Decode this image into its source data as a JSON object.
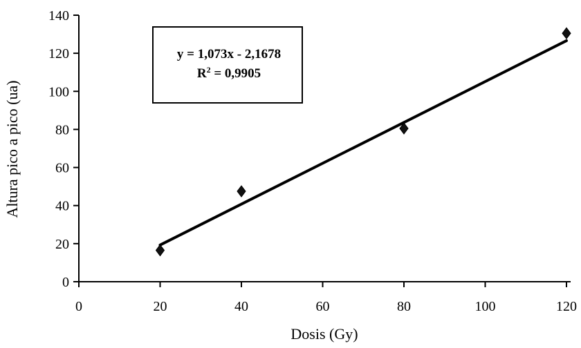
{
  "chart_data": {
    "type": "scatter",
    "title": "",
    "xlabel": "Dosis (Gy)",
    "ylabel": "Altura pico a pico (ua)",
    "xlim": [
      0,
      120
    ],
    "ylim": [
      0,
      140
    ],
    "x_ticks": [
      0,
      20,
      40,
      60,
      80,
      100,
      120
    ],
    "y_ticks": [
      0,
      20,
      40,
      60,
      80,
      100,
      120,
      140
    ],
    "grid": false,
    "series": [
      {
        "points": [
          {
            "x": 20,
            "y": 16.5
          },
          {
            "x": 40,
            "y": 47.5
          },
          {
            "x": 80,
            "y": 80.5
          },
          {
            "x": 120,
            "y": 130.5
          }
        ]
      }
    ],
    "trendline": {
      "slope": 1.073,
      "intercept": -2.1678,
      "x_range": [
        20,
        120
      ]
    },
    "annotation": {
      "equation": "y = 1,073x - 2,1678",
      "r2_prefix": "R",
      "r2_sup": "2",
      "r2_value": " = 0,9905"
    }
  }
}
